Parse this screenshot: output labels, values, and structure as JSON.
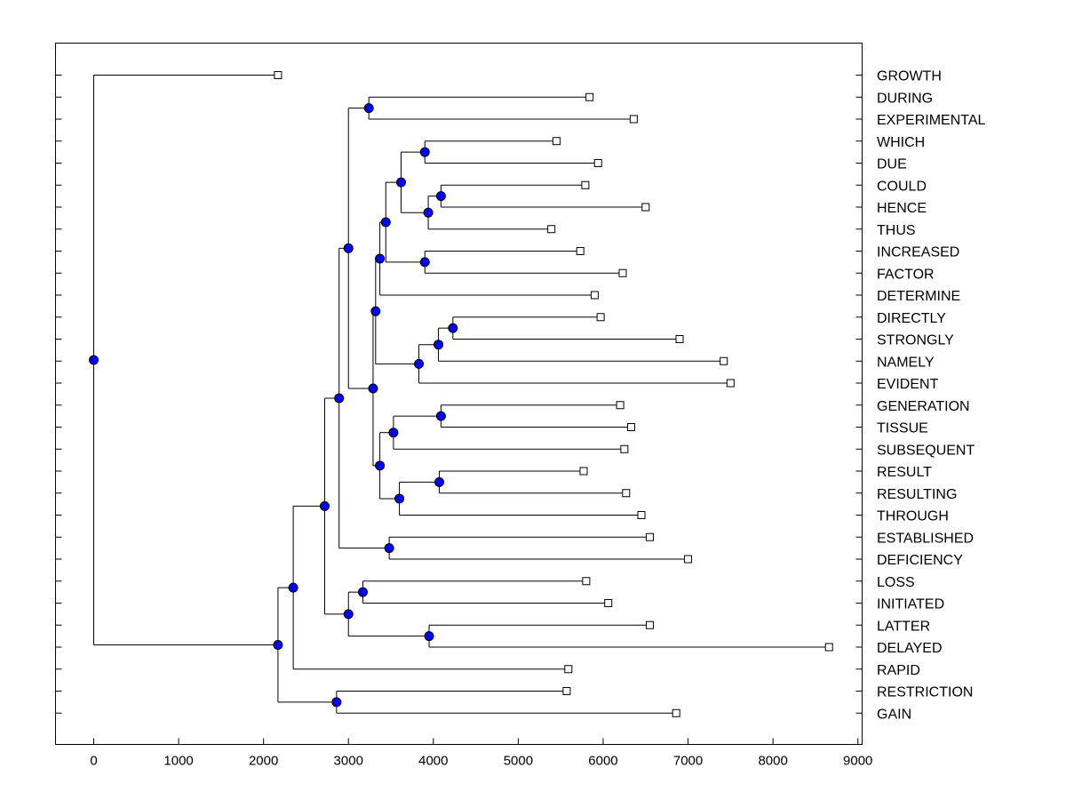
{
  "chart_data": {
    "type": "dendrogram",
    "title": "",
    "xlabel": "",
    "ylabel": "",
    "xlim": [
      -450,
      9050
    ],
    "xticks": [
      0,
      1000,
      2000,
      3000,
      4000,
      5000,
      6000,
      7000,
      8000,
      9000
    ],
    "grid": false,
    "node_color": "#0000ff",
    "leaves": [
      {
        "label": "GROWTH",
        "x": 2170
      },
      {
        "label": "DURING",
        "x": 5840
      },
      {
        "label": "EXPERIMENTAL",
        "x": 6360
      },
      {
        "label": "WHICH",
        "x": 5450
      },
      {
        "label": "DUE",
        "x": 5940
      },
      {
        "label": "COULD",
        "x": 5790
      },
      {
        "label": "HENCE",
        "x": 6500
      },
      {
        "label": "THUS",
        "x": 5390
      },
      {
        "label": "INCREASED",
        "x": 5730
      },
      {
        "label": "FACTOR",
        "x": 6230
      },
      {
        "label": "DETERMINE",
        "x": 5900
      },
      {
        "label": "DIRECTLY",
        "x": 5970
      },
      {
        "label": "STRONGLY",
        "x": 6900
      },
      {
        "label": "NAMELY",
        "x": 7420
      },
      {
        "label": "EVIDENT",
        "x": 7500
      },
      {
        "label": "GENERATION",
        "x": 6200
      },
      {
        "label": "TISSUE",
        "x": 6330
      },
      {
        "label": "SUBSEQUENT",
        "x": 6250
      },
      {
        "label": "RESULT",
        "x": 5770
      },
      {
        "label": "RESULTING",
        "x": 6270
      },
      {
        "label": "THROUGH",
        "x": 6450
      },
      {
        "label": "ESTABLISHED",
        "x": 6550
      },
      {
        "label": "DEFICIENCY",
        "x": 7000
      },
      {
        "label": "LOSS",
        "x": 5800
      },
      {
        "label": "INITIATED",
        "x": 6060
      },
      {
        "label": "LATTER",
        "x": 6550
      },
      {
        "label": "DELAYED",
        "x": 8660
      },
      {
        "label": "RAPID",
        "x": 5590
      },
      {
        "label": "RESTRICTION",
        "x": 5570
      },
      {
        "label": "GAIN",
        "x": 6860
      }
    ],
    "merges": [
      {
        "id": "n1",
        "x": 3240,
        "children": [
          "DURING",
          "EXPERIMENTAL"
        ]
      },
      {
        "id": "n2",
        "x": 3900,
        "children": [
          "WHICH",
          "DUE"
        ]
      },
      {
        "id": "n3",
        "x": 4090,
        "children": [
          "COULD",
          "HENCE"
        ]
      },
      {
        "id": "n4",
        "x": 3940,
        "children": [
          "n3",
          "THUS"
        ]
      },
      {
        "id": "n5",
        "x": 3620,
        "children": [
          "n2",
          "n4"
        ]
      },
      {
        "id": "n6",
        "x": 3900,
        "children": [
          "INCREASED",
          "FACTOR"
        ]
      },
      {
        "id": "n7",
        "x": 3440,
        "children": [
          "n5",
          "n6"
        ]
      },
      {
        "id": "n8",
        "x": 3370,
        "children": [
          "n7",
          "DETERMINE"
        ]
      },
      {
        "id": "n9",
        "x": 4230,
        "children": [
          "DIRECTLY",
          "STRONGLY"
        ]
      },
      {
        "id": "n10",
        "x": 4060,
        "children": [
          "n9",
          "NAMELY"
        ]
      },
      {
        "id": "n11",
        "x": 3830,
        "children": [
          "n10",
          "EVIDENT"
        ]
      },
      {
        "id": "n12",
        "x": 3320,
        "children": [
          "n8",
          "n11"
        ]
      },
      {
        "id": "n13",
        "x": 4090,
        "children": [
          "GENERATION",
          "TISSUE"
        ]
      },
      {
        "id": "n14",
        "x": 3530,
        "children": [
          "n13",
          "SUBSEQUENT"
        ]
      },
      {
        "id": "n15",
        "x": 4070,
        "children": [
          "RESULT",
          "RESULTING"
        ]
      },
      {
        "id": "n16",
        "x": 3600,
        "children": [
          "n15",
          "THROUGH"
        ]
      },
      {
        "id": "n17",
        "x": 3370,
        "children": [
          "n14",
          "n16"
        ]
      },
      {
        "id": "n18",
        "x": 3290,
        "children": [
          "n12",
          "n17"
        ]
      },
      {
        "id": "n19",
        "x": 3000,
        "children": [
          "n1",
          "n18"
        ]
      },
      {
        "id": "n20",
        "x": 3480,
        "children": [
          "ESTABLISHED",
          "DEFICIENCY"
        ]
      },
      {
        "id": "n21",
        "x": 2890,
        "children": [
          "n19",
          "n20"
        ]
      },
      {
        "id": "n22",
        "x": 3170,
        "children": [
          "LOSS",
          "INITIATED"
        ]
      },
      {
        "id": "n23",
        "x": 3950,
        "children": [
          "LATTER",
          "DELAYED"
        ]
      },
      {
        "id": "n24",
        "x": 3000,
        "children": [
          "n22",
          "n23"
        ]
      },
      {
        "id": "n25",
        "x": 2720,
        "children": [
          "n21",
          "n24"
        ]
      },
      {
        "id": "n26",
        "x": 2350,
        "children": [
          "n25",
          "RAPID"
        ]
      },
      {
        "id": "n27",
        "x": 2860,
        "children": [
          "RESTRICTION",
          "GAIN"
        ]
      },
      {
        "id": "n28",
        "x": 2170,
        "children": [
          "n26",
          "n27"
        ]
      },
      {
        "id": "root",
        "x": 0,
        "children": [
          "GROWTH",
          "n28"
        ]
      }
    ]
  }
}
